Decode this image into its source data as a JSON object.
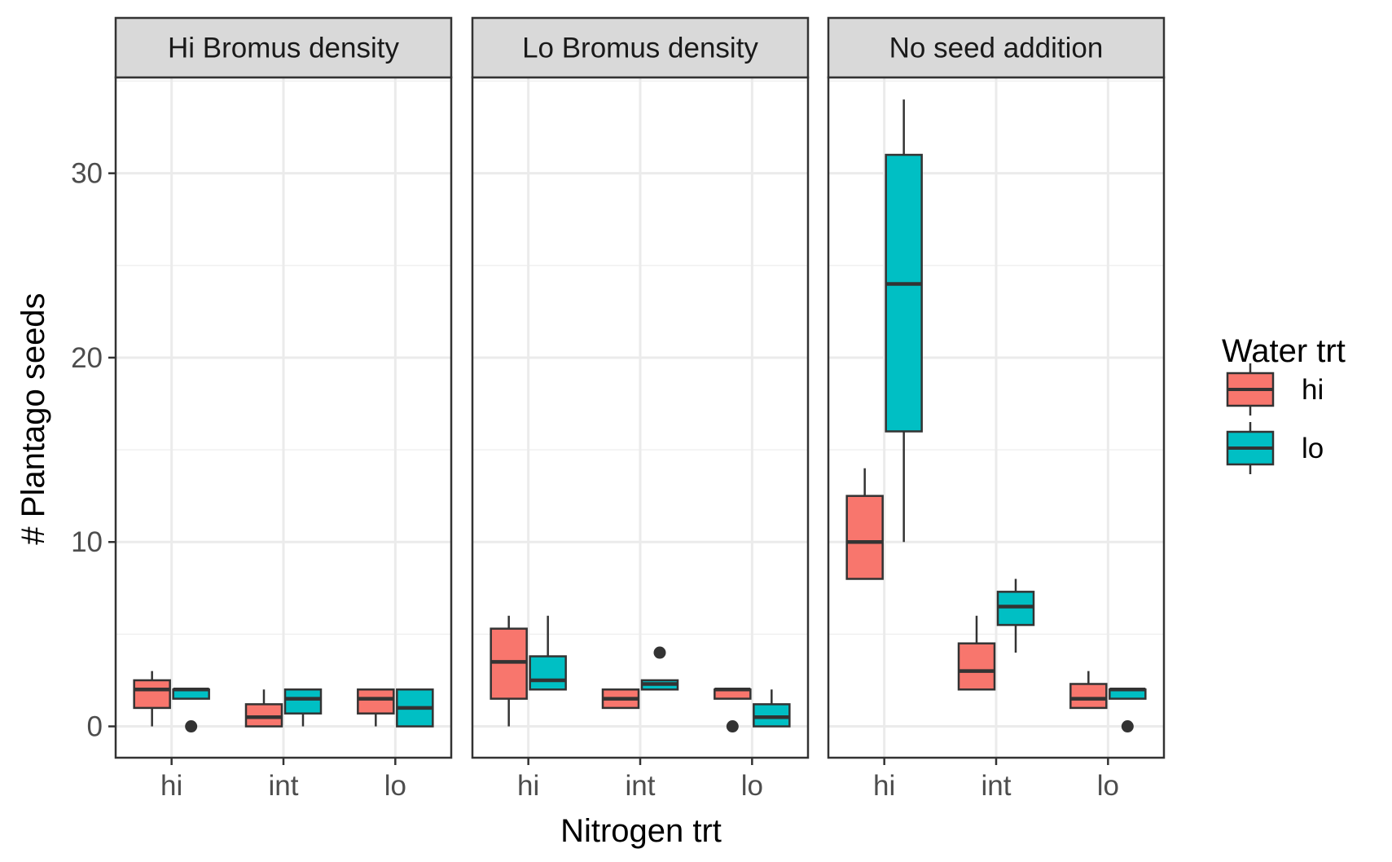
{
  "chart_data": {
    "type": "boxplot",
    "ylabel": "# Plantago seeds",
    "xlabel": "Nitrogen trt",
    "ylim": [
      -1.7,
      35.2
    ],
    "yticks": [
      0,
      10,
      20,
      30
    ],
    "categories": [
      "hi",
      "int",
      "lo"
    ],
    "grid": true,
    "legend": {
      "title": "Water trt",
      "position": "right",
      "entries": [
        {
          "label": "hi",
          "color": "#F8766D"
        },
        {
          "label": "lo",
          "color": "#00BFC4"
        }
      ]
    },
    "panels": [
      {
        "title": "Hi Bromus density",
        "boxes": [
          {
            "nitrogen": "hi",
            "water": "hi",
            "lower_whisker": 0,
            "q1": 1,
            "median": 2,
            "q3": 2.5,
            "upper_whisker": 3,
            "outliers": []
          },
          {
            "nitrogen": "hi",
            "water": "lo",
            "lower_whisker": 1.5,
            "q1": 1.5,
            "median": 2,
            "q3": 2,
            "upper_whisker": 2,
            "outliers": [
              0
            ]
          },
          {
            "nitrogen": "int",
            "water": "hi",
            "lower_whisker": 0,
            "q1": 0,
            "median": 0.5,
            "q3": 1.2,
            "upper_whisker": 2,
            "outliers": []
          },
          {
            "nitrogen": "int",
            "water": "lo",
            "lower_whisker": 0,
            "q1": 0.7,
            "median": 1.5,
            "q3": 2,
            "upper_whisker": 2,
            "outliers": []
          },
          {
            "nitrogen": "lo",
            "water": "hi",
            "lower_whisker": 0,
            "q1": 0.7,
            "median": 1.5,
            "q3": 2,
            "upper_whisker": 2,
            "outliers": []
          },
          {
            "nitrogen": "lo",
            "water": "lo",
            "lower_whisker": 0,
            "q1": 0,
            "median": 1,
            "q3": 2,
            "upper_whisker": 2,
            "outliers": []
          }
        ]
      },
      {
        "title": "Lo Bromus density",
        "boxes": [
          {
            "nitrogen": "hi",
            "water": "hi",
            "lower_whisker": 0,
            "q1": 1.5,
            "median": 3.5,
            "q3": 5.3,
            "upper_whisker": 6,
            "outliers": []
          },
          {
            "nitrogen": "hi",
            "water": "lo",
            "lower_whisker": 2,
            "q1": 2,
            "median": 2.5,
            "q3": 3.8,
            "upper_whisker": 6,
            "outliers": []
          },
          {
            "nitrogen": "int",
            "water": "hi",
            "lower_whisker": 1,
            "q1": 1,
            "median": 1.5,
            "q3": 2,
            "upper_whisker": 2,
            "outliers": []
          },
          {
            "nitrogen": "int",
            "water": "lo",
            "lower_whisker": 2,
            "q1": 2,
            "median": 2.3,
            "q3": 2.5,
            "upper_whisker": 2.5,
            "outliers": [
              4
            ]
          },
          {
            "nitrogen": "lo",
            "water": "hi",
            "lower_whisker": 1.5,
            "q1": 1.5,
            "median": 2,
            "q3": 2,
            "upper_whisker": 2,
            "outliers": [
              0
            ]
          },
          {
            "nitrogen": "lo",
            "water": "lo",
            "lower_whisker": 0,
            "q1": 0,
            "median": 0.5,
            "q3": 1.2,
            "upper_whisker": 2,
            "outliers": []
          }
        ]
      },
      {
        "title": "No seed addition",
        "boxes": [
          {
            "nitrogen": "hi",
            "water": "hi",
            "lower_whisker": 8,
            "q1": 8,
            "median": 10,
            "q3": 12.5,
            "upper_whisker": 14,
            "outliers": []
          },
          {
            "nitrogen": "hi",
            "water": "lo",
            "lower_whisker": 10,
            "q1": 16,
            "median": 24,
            "q3": 31,
            "upper_whisker": 34,
            "outliers": []
          },
          {
            "nitrogen": "int",
            "water": "hi",
            "lower_whisker": 2,
            "q1": 2,
            "median": 3,
            "q3": 4.5,
            "upper_whisker": 6,
            "outliers": []
          },
          {
            "nitrogen": "int",
            "water": "lo",
            "lower_whisker": 4,
            "q1": 5.5,
            "median": 6.5,
            "q3": 7.3,
            "upper_whisker": 8,
            "outliers": []
          },
          {
            "nitrogen": "lo",
            "water": "hi",
            "lower_whisker": 1,
            "q1": 1,
            "median": 1.5,
            "q3": 2.3,
            "upper_whisker": 3,
            "outliers": []
          },
          {
            "nitrogen": "lo",
            "water": "lo",
            "lower_whisker": 1.5,
            "q1": 1.5,
            "median": 2,
            "q3": 2,
            "upper_whisker": 2,
            "outliers": [
              0
            ]
          }
        ]
      }
    ]
  }
}
